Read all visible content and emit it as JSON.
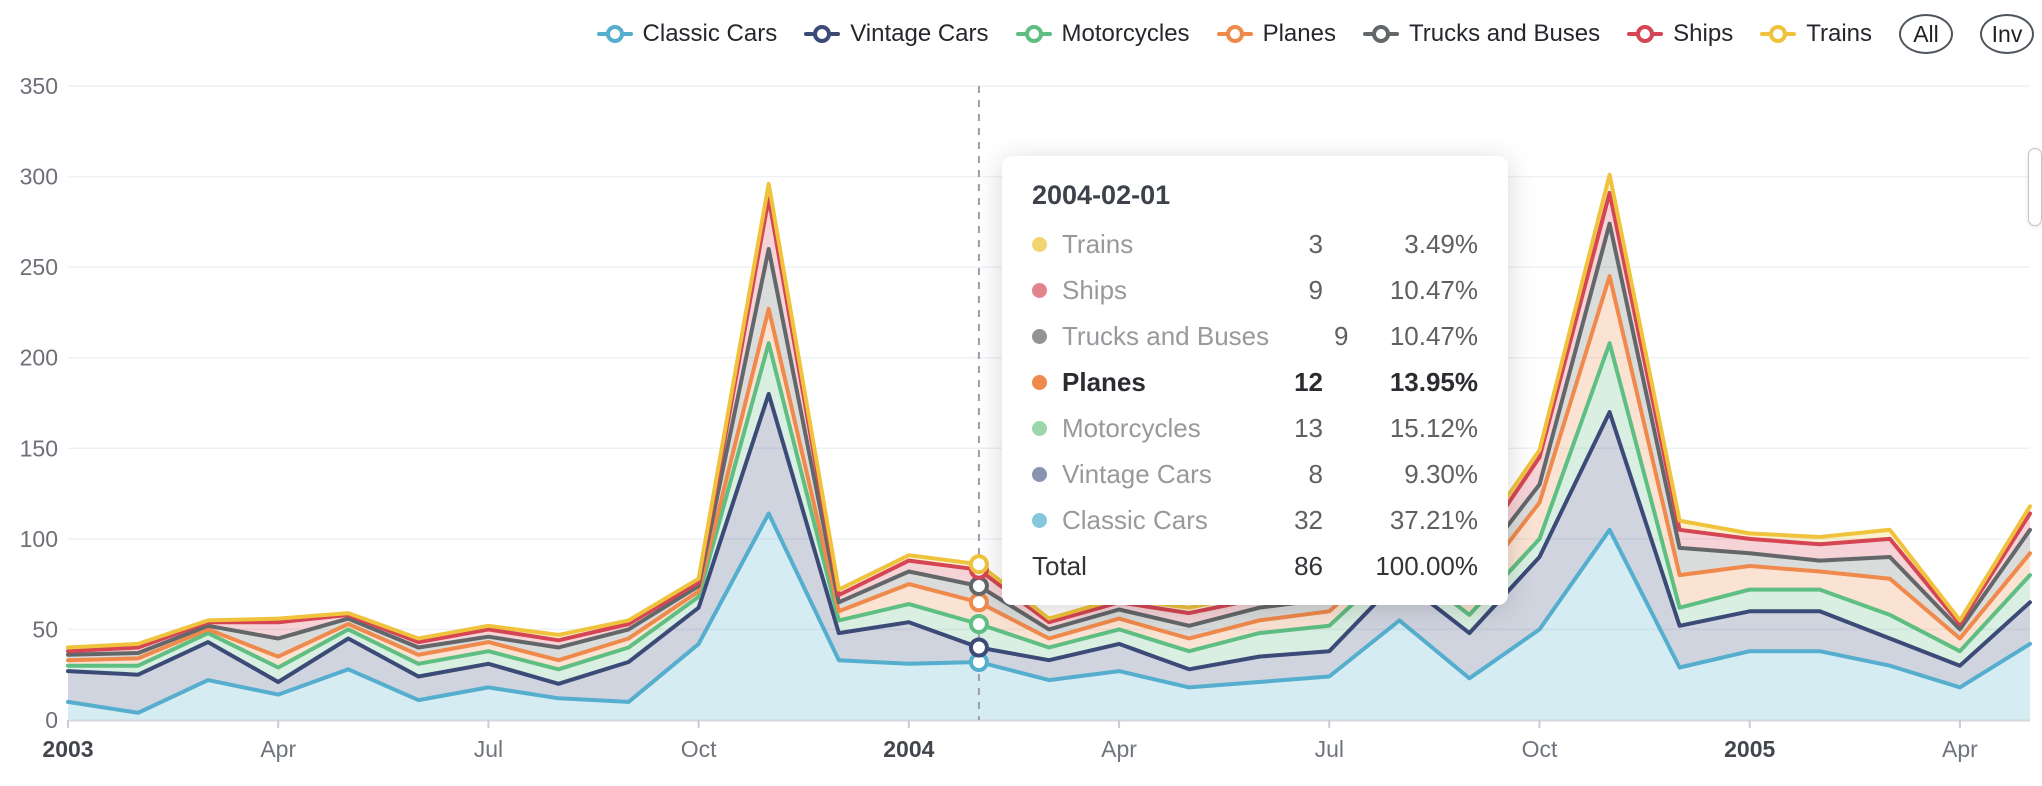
{
  "legend": {
    "items": [
      {
        "label": "Classic Cars",
        "color": "#55aecd"
      },
      {
        "label": "Vintage Cars",
        "color": "#3c4a78"
      },
      {
        "label": "Motorcycles",
        "color": "#5fbe82"
      },
      {
        "label": "Planes",
        "color": "#ef8a4c"
      },
      {
        "label": "Trucks and Buses",
        "color": "#636769"
      },
      {
        "label": "Ships",
        "color": "#d64553"
      },
      {
        "label": "Trains",
        "color": "#f0c33c"
      }
    ],
    "buttons": [
      {
        "label": "All"
      },
      {
        "label": "Inv"
      }
    ]
  },
  "chart_data": {
    "type": "area",
    "stacked": true,
    "grid": true,
    "legend_position": "top",
    "x": [
      "2003-01",
      "2003-02",
      "2003-03",
      "2003-04",
      "2003-05",
      "2003-06",
      "2003-07",
      "2003-08",
      "2003-09",
      "2003-10",
      "2003-11",
      "2003-12",
      "2004-01",
      "2004-02",
      "2004-03",
      "2004-04",
      "2004-05",
      "2004-06",
      "2004-07",
      "2004-08",
      "2004-09",
      "2004-10",
      "2004-11",
      "2004-12",
      "2005-01",
      "2005-02",
      "2005-03",
      "2005-04",
      "2005-05"
    ],
    "x_tick_labels": [
      {
        "index": 0,
        "label": "2003",
        "bold": true
      },
      {
        "index": 3,
        "label": "Apr",
        "bold": false
      },
      {
        "index": 6,
        "label": "Jul",
        "bold": false
      },
      {
        "index": 9,
        "label": "Oct",
        "bold": false
      },
      {
        "index": 12,
        "label": "2004",
        "bold": true
      },
      {
        "index": 15,
        "label": "Apr",
        "bold": false
      },
      {
        "index": 18,
        "label": "Jul",
        "bold": false
      },
      {
        "index": 21,
        "label": "Oct",
        "bold": false
      },
      {
        "index": 24,
        "label": "2005",
        "bold": true
      },
      {
        "index": 27,
        "label": "Apr",
        "bold": false
      }
    ],
    "ylim": [
      0,
      350
    ],
    "y_ticks": [
      0,
      50,
      100,
      150,
      200,
      250,
      300,
      350
    ],
    "series": [
      {
        "name": "Classic Cars",
        "color": "#55aecd",
        "values": [
          10,
          4,
          22,
          14,
          28,
          11,
          18,
          12,
          10,
          42,
          114,
          33,
          31,
          32,
          22,
          27,
          18,
          21,
          24,
          55,
          23,
          50,
          105,
          29,
          38,
          38,
          30,
          18,
          42
        ]
      },
      {
        "name": "Vintage Cars",
        "color": "#3c4a78",
        "values": [
          17,
          21,
          21,
          7,
          17,
          13,
          13,
          8,
          22,
          20,
          66,
          15,
          23,
          8,
          11,
          15,
          10,
          14,
          14,
          23,
          25,
          40,
          65,
          23,
          22,
          22,
          15,
          12,
          23
        ]
      },
      {
        "name": "Motorcycles",
        "color": "#5fbe82",
        "values": [
          3,
          5,
          5,
          8,
          5,
          7,
          7,
          8,
          8,
          6,
          28,
          7,
          10,
          13,
          7,
          8,
          10,
          13,
          14,
          10,
          10,
          10,
          38,
          10,
          12,
          12,
          13,
          8,
          15
        ]
      },
      {
        "name": "Planes",
        "color": "#ef8a4c",
        "values": [
          3,
          4,
          2,
          6,
          3,
          5,
          5,
          5,
          5,
          3,
          19,
          5,
          11,
          12,
          5,
          6,
          7,
          7,
          8,
          7,
          12,
          20,
          37,
          18,
          13,
          10,
          20,
          7,
          12
        ]
      },
      {
        "name": "Trucks and Buses",
        "color": "#636769",
        "values": [
          3,
          3,
          2,
          10,
          3,
          4,
          3,
          7,
          5,
          3,
          33,
          5,
          7,
          9,
          5,
          5,
          7,
          7,
          7,
          5,
          10,
          10,
          29,
          15,
          7,
          6,
          12,
          5,
          13
        ]
      },
      {
        "name": "Ships",
        "color": "#d64553",
        "values": [
          2,
          3,
          2,
          9,
          2,
          3,
          4,
          4,
          3,
          2,
          28,
          4,
          6,
          9,
          4,
          4,
          7,
          5,
          6,
          3,
          8,
          15,
          17,
          10,
          8,
          9,
          10,
          3,
          9
        ]
      },
      {
        "name": "Trains",
        "color": "#f0c33c",
        "values": [
          2,
          2,
          1,
          2,
          1,
          2,
          2,
          3,
          2,
          2,
          8,
          3,
          3,
          3,
          2,
          2,
          3,
          3,
          3,
          2,
          5,
          4,
          10,
          5,
          3,
          4,
          5,
          2,
          4
        ]
      }
    ],
    "hover": {
      "index": 13,
      "date": "2004-02-01"
    }
  },
  "tooltip": {
    "title": "2004-02-01",
    "rows": [
      {
        "name": "Trains",
        "value": "3",
        "pct": "3.49%",
        "dot": "#f3d472"
      },
      {
        "name": "Ships",
        "value": "9",
        "pct": "10.47%",
        "dot": "#e2838d"
      },
      {
        "name": "Trucks and Buses",
        "value": "9",
        "pct": "10.47%",
        "dot": "#919497"
      },
      {
        "name": "Planes",
        "value": "12",
        "pct": "13.95%",
        "dot": "#ef8a4c",
        "emphasis": true
      },
      {
        "name": "Motorcycles",
        "value": "13",
        "pct": "15.12%",
        "dot": "#9bd6ac"
      },
      {
        "name": "Vintage Cars",
        "value": "8",
        "pct": "9.30%",
        "dot": "#8a93b0"
      },
      {
        "name": "Classic Cars",
        "value": "32",
        "pct": "37.21%",
        "dot": "#85c8de"
      },
      {
        "name": "Total",
        "value": "86",
        "pct": "100.00%",
        "total": true
      }
    ]
  }
}
